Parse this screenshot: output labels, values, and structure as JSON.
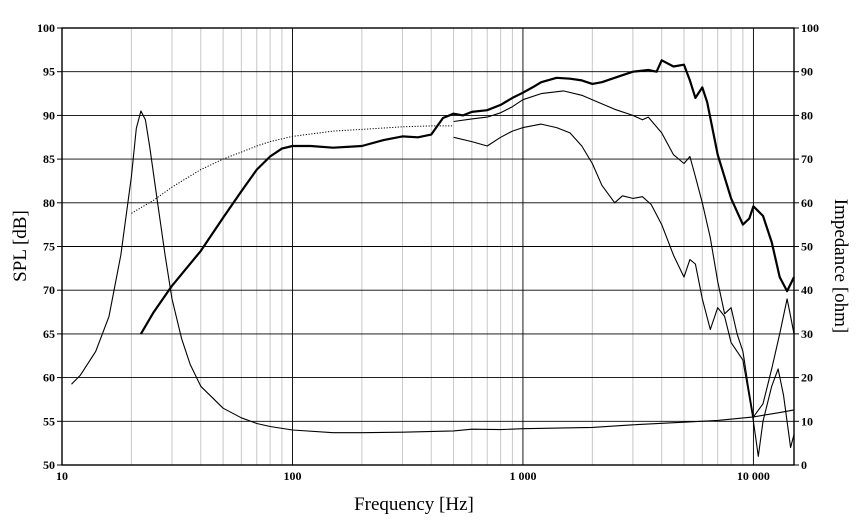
{
  "chart_data": {
    "type": "line",
    "title": "",
    "xlabel": "Frequency [Hz]",
    "ylabel": "SPL [dB]",
    "y2label": "Impedance [ohm]",
    "xscale": "log",
    "xlim": [
      10,
      15000
    ],
    "ylim": [
      50,
      100
    ],
    "y2lim": [
      0,
      100
    ],
    "grid": true,
    "legend": "none",
    "x_ticks": [
      {
        "value": 10,
        "label": "10"
      },
      {
        "value": 100,
        "label": "100"
      },
      {
        "value": 1000,
        "label": "1 000"
      },
      {
        "value": 10000,
        "label": "10 000"
      }
    ],
    "y_ticks": [
      {
        "value": 50,
        "label": "50"
      },
      {
        "value": 55,
        "label": "55"
      },
      {
        "value": 60,
        "label": "60"
      },
      {
        "value": 65,
        "label": "65"
      },
      {
        "value": 70,
        "label": "70"
      },
      {
        "value": 75,
        "label": "75"
      },
      {
        "value": 80,
        "label": "80"
      },
      {
        "value": 85,
        "label": "85"
      },
      {
        "value": 90,
        "label": "90"
      },
      {
        "value": 95,
        "label": "95"
      },
      {
        "value": 100,
        "label": "100"
      }
    ],
    "y2_ticks": [
      {
        "value": 0,
        "label": "0"
      },
      {
        "value": 10,
        "label": "10"
      },
      {
        "value": 20,
        "label": "20"
      },
      {
        "value": 30,
        "label": "30"
      },
      {
        "value": 40,
        "label": "40"
      },
      {
        "value": 50,
        "label": "50"
      },
      {
        "value": 60,
        "label": "60"
      },
      {
        "value": 70,
        "label": "70"
      },
      {
        "value": 80,
        "label": "80"
      },
      {
        "value": 90,
        "label": "90"
      },
      {
        "value": 100,
        "label": "100"
      }
    ],
    "series": [
      {
        "axis": "left",
        "style": "thick",
        "color": "#000000",
        "points": [
          [
            22,
            65
          ],
          [
            25,
            67.5
          ],
          [
            30,
            70.5
          ],
          [
            40,
            74.5
          ],
          [
            50,
            78.3
          ],
          [
            60,
            81.3
          ],
          [
            70,
            83.8
          ],
          [
            80,
            85.3
          ],
          [
            90,
            86.2
          ],
          [
            100,
            86.5
          ],
          [
            120,
            86.5
          ],
          [
            150,
            86.3
          ],
          [
            200,
            86.5
          ],
          [
            250,
            87.2
          ],
          [
            300,
            87.6
          ],
          [
            350,
            87.5
          ],
          [
            400,
            87.8
          ],
          [
            450,
            89.7
          ],
          [
            500,
            90.2
          ],
          [
            550,
            90.0
          ],
          [
            600,
            90.4
          ],
          [
            700,
            90.6
          ],
          [
            800,
            91.2
          ],
          [
            900,
            92.0
          ],
          [
            1000,
            92.6
          ],
          [
            1100,
            93.2
          ],
          [
            1200,
            93.8
          ],
          [
            1400,
            94.3
          ],
          [
            1600,
            94.2
          ],
          [
            1800,
            94.0
          ],
          [
            2000,
            93.6
          ],
          [
            2200,
            93.8
          ],
          [
            2500,
            94.3
          ],
          [
            3000,
            95.0
          ],
          [
            3500,
            95.2
          ],
          [
            3800,
            95.0
          ],
          [
            4000,
            96.3
          ],
          [
            4500,
            95.6
          ],
          [
            5000,
            95.8
          ],
          [
            5300,
            94.0
          ],
          [
            5600,
            92.0
          ],
          [
            6000,
            93.2
          ],
          [
            6300,
            91.5
          ],
          [
            7000,
            85.5
          ],
          [
            8000,
            80.5
          ],
          [
            9000,
            77.5
          ],
          [
            9600,
            78.2
          ],
          [
            10000,
            79.6
          ],
          [
            11000,
            78.5
          ],
          [
            12000,
            75.5
          ],
          [
            13000,
            71.5
          ],
          [
            14000,
            69.9
          ],
          [
            15000,
            71.5
          ]
        ]
      },
      {
        "axis": "left",
        "style": "thin",
        "color": "#000000",
        "points": [
          [
            500,
            89.3
          ],
          [
            600,
            89.6
          ],
          [
            700,
            89.8
          ],
          [
            800,
            90.3
          ],
          [
            900,
            91.0
          ],
          [
            1000,
            91.8
          ],
          [
            1200,
            92.5
          ],
          [
            1500,
            92.8
          ],
          [
            1800,
            92.3
          ],
          [
            2000,
            91.8
          ],
          [
            2500,
            90.7
          ],
          [
            3000,
            90.0
          ],
          [
            3300,
            89.5
          ],
          [
            3500,
            89.8
          ],
          [
            4000,
            88.0
          ],
          [
            4500,
            85.5
          ],
          [
            5000,
            84.5
          ],
          [
            5300,
            85.3
          ],
          [
            5600,
            83.0
          ],
          [
            6000,
            80.0
          ],
          [
            6500,
            76.0
          ],
          [
            7000,
            71.0
          ],
          [
            7500,
            67.3
          ],
          [
            8000,
            68.0
          ],
          [
            8500,
            65.0
          ],
          [
            9000,
            63.0
          ],
          [
            9500,
            59.0
          ],
          [
            10000,
            55.5
          ],
          [
            11000,
            57.0
          ],
          [
            12000,
            61.0
          ],
          [
            13000,
            65.0
          ],
          [
            14000,
            69.0
          ],
          [
            14500,
            67.0
          ],
          [
            15000,
            65.0
          ]
        ]
      },
      {
        "axis": "left",
        "style": "thin",
        "color": "#000000",
        "points": [
          [
            500,
            87.5
          ],
          [
            600,
            87.0
          ],
          [
            700,
            86.5
          ],
          [
            800,
            87.5
          ],
          [
            900,
            88.2
          ],
          [
            1000,
            88.6
          ],
          [
            1200,
            89.0
          ],
          [
            1400,
            88.6
          ],
          [
            1600,
            88.0
          ],
          [
            1800,
            86.5
          ],
          [
            2000,
            84.5
          ],
          [
            2200,
            82.0
          ],
          [
            2500,
            80.0
          ],
          [
            2700,
            80.8
          ],
          [
            3000,
            80.5
          ],
          [
            3300,
            80.7
          ],
          [
            3600,
            79.8
          ],
          [
            4000,
            77.5
          ],
          [
            4500,
            74.0
          ],
          [
            5000,
            71.5
          ],
          [
            5300,
            73.5
          ],
          [
            5600,
            73.0
          ],
          [
            6000,
            69.0
          ],
          [
            6500,
            65.5
          ],
          [
            7000,
            68.0
          ],
          [
            7500,
            67.0
          ],
          [
            8000,
            64.0
          ],
          [
            9000,
            62.0
          ],
          [
            10000,
            55.0
          ],
          [
            10500,
            51.0
          ],
          [
            11000,
            55.0
          ],
          [
            12000,
            59.0
          ],
          [
            12800,
            61.0
          ],
          [
            13500,
            58.0
          ],
          [
            14500,
            52.0
          ],
          [
            15000,
            53.5
          ]
        ]
      },
      {
        "axis": "left",
        "style": "dotted",
        "color": "#000000",
        "points": [
          [
            20,
            78.8
          ],
          [
            25,
            80.3
          ],
          [
            30,
            81.8
          ],
          [
            40,
            83.8
          ],
          [
            50,
            85.0
          ],
          [
            60,
            85.8
          ],
          [
            70,
            86.5
          ],
          [
            80,
            87.0
          ],
          [
            100,
            87.6
          ],
          [
            150,
            88.2
          ],
          [
            200,
            88.4
          ],
          [
            300,
            88.7
          ],
          [
            400,
            88.8
          ],
          [
            500,
            88.8
          ]
        ]
      },
      {
        "axis": "right",
        "style": "thin",
        "color": "#000000",
        "points": [
          [
            11,
            18.5
          ],
          [
            12,
            20.5
          ],
          [
            14,
            26
          ],
          [
            16,
            34
          ],
          [
            18,
            48
          ],
          [
            20,
            66
          ],
          [
            21,
            77
          ],
          [
            22,
            81
          ],
          [
            23,
            79
          ],
          [
            24,
            73
          ],
          [
            26,
            60
          ],
          [
            28,
            48
          ],
          [
            30,
            38
          ],
          [
            33,
            29
          ],
          [
            36,
            23
          ],
          [
            40,
            18
          ],
          [
            50,
            13
          ],
          [
            60,
            10.8
          ],
          [
            70,
            9.5
          ],
          [
            80,
            8.8
          ],
          [
            100,
            8.0
          ],
          [
            150,
            7.4
          ],
          [
            200,
            7.4
          ],
          [
            300,
            7.5
          ],
          [
            500,
            7.8
          ],
          [
            600,
            8.2
          ],
          [
            800,
            8.1
          ],
          [
            1000,
            8.3
          ],
          [
            2000,
            8.6
          ],
          [
            3000,
            9.2
          ],
          [
            5000,
            9.8
          ],
          [
            7000,
            10.2
          ],
          [
            10000,
            11.0
          ],
          [
            13000,
            12.0
          ],
          [
            15000,
            12.6
          ]
        ]
      }
    ]
  }
}
